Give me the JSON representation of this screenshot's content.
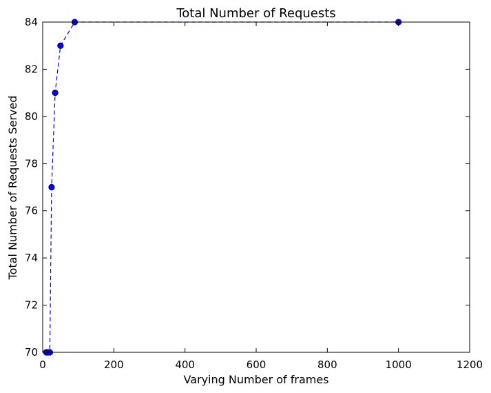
{
  "chart_data": {
    "type": "line",
    "title": "Total Number of Requests",
    "xlabel": "Varying Number of frames",
    "ylabel": "Total Number of Requests Served",
    "xlim": [
      0,
      1200
    ],
    "ylim": [
      70,
      84
    ],
    "x_ticks": [
      "0",
      "200",
      "400",
      "600",
      "800",
      "1000",
      "1200"
    ],
    "y_ticks": [
      "70",
      "72",
      "74",
      "76",
      "78",
      "80",
      "82",
      "84"
    ],
    "grid": false,
    "series": [
      {
        "x": [
          10,
          15,
          20,
          25,
          35,
          50,
          90,
          1000
        ],
        "y": [
          70,
          70,
          70,
          77,
          81,
          83,
          84,
          84
        ],
        "line_style": "dashed",
        "marker": "circle",
        "color": "#0000ff"
      }
    ]
  }
}
